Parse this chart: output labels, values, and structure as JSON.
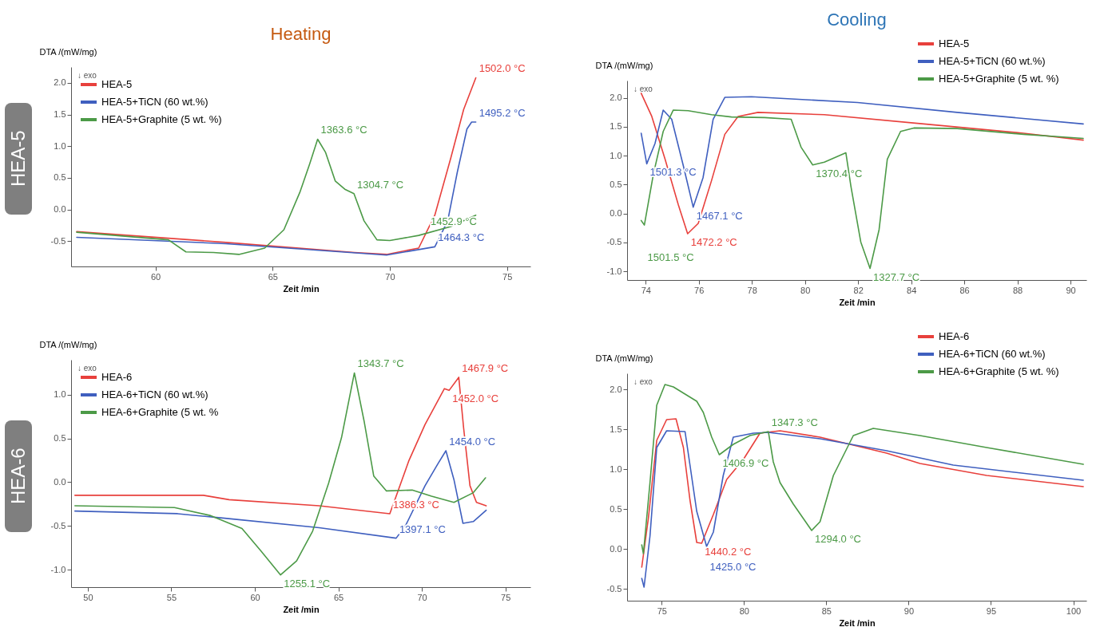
{
  "chart_data": [
    {
      "type": "line",
      "title": "Heating",
      "subtitle": "HEA-5",
      "xlabel": "Zeit /min",
      "ylabel": "DTA /(mW/mg)",
      "legend": "top left",
      "marker": "none",
      "line_style": "solid",
      "xlim": [
        56.4,
        76
      ],
      "xticks": [
        60,
        65,
        70,
        75
      ],
      "ylim": [
        -0.9,
        2.25
      ],
      "yticks": [
        {
          "value": -0.5,
          "label": "-0.5"
        },
        {
          "value": 0,
          "label": "0.0"
        },
        {
          "value": 0.5,
          "label": "0.5"
        },
        {
          "value": 1,
          "label": "1.0"
        },
        {
          "value": 1.5,
          "label": "1.5"
        },
        {
          "value": 2,
          "label": "2.0"
        }
      ],
      "series": [
        {
          "name": "HEA-5",
          "color": "#e8403c",
          "x": [
            56.64,
            63.01,
            68.49,
            69.86,
            71.23,
            71.92,
            72.6,
            73.15,
            73.67
          ],
          "values": [
            -0.35,
            -0.52,
            -0.68,
            -0.71,
            -0.61,
            -0.09,
            0.81,
            1.58,
            2.08
          ]
        },
        {
          "name": "HEA-5+TiCN (60 wt.%)",
          "color": "#3f5fbf",
          "x": [
            56.64,
            63.0,
            69.86,
            71.92,
            72.47,
            72.88,
            73.29,
            73.49,
            73.67
          ],
          "values": [
            -0.44,
            -0.54,
            -0.72,
            -0.59,
            -0.18,
            0.59,
            1.27,
            1.38,
            1.38
          ]
        },
        {
          "name": "HEA-5+Graphite (5 wt. %)",
          "color": "#4c9a47",
          "x": [
            56.64,
            60.55,
            61.3,
            62.47,
            63.56,
            64.66,
            65.48,
            66.16,
            66.58,
            66.92,
            67.26,
            67.67,
            68.08,
            68.47,
            68.9,
            69.45,
            70.0,
            71.23,
            72.6,
            73.67
          ],
          "values": [
            -0.36,
            -0.48,
            -0.67,
            -0.68,
            -0.71,
            -0.61,
            -0.32,
            0.27,
            0.72,
            1.11,
            0.9,
            0.45,
            0.32,
            0.25,
            -0.18,
            -0.48,
            -0.49,
            -0.41,
            -0.27,
            -0.09
          ]
        }
      ],
      "annotations": [
        "↓ exo",
        {
          "text": "1363.6 °C",
          "x": 66.92,
          "y": 1.11
        },
        {
          "text": "1304.7 °C",
          "x": 68.47,
          "y": 0.25
        },
        {
          "text": "1502.0 °C",
          "x": 73.67,
          "y": 2.08
        },
        {
          "text": "1495.2 °C",
          "x": 73.67,
          "y": 1.38
        },
        {
          "text": "1452.9 °C",
          "x": 71.6,
          "y": -0.33
        },
        {
          "text": "1464.3 °C",
          "x": 71.92,
          "y": -0.59
        }
      ]
    },
    {
      "type": "line",
      "title": "Cooling",
      "xlabel": "Zeit /min",
      "ylabel": "DTA /(mW/mg)",
      "legend": "top right",
      "marker": "none",
      "line_style": "solid",
      "xlim": [
        73.3,
        90.6
      ],
      "xticks": [
        74,
        76,
        78,
        80,
        82,
        84,
        86,
        88,
        90
      ],
      "ylim": [
        -1.15,
        2.3
      ],
      "yticks": [
        {
          "value": -1,
          "label": "-1.0"
        },
        {
          "value": -0.5,
          "label": "-0.5"
        },
        {
          "value": 0,
          "label": "0.0"
        },
        {
          "value": 0.5,
          "label": "0.5"
        },
        {
          "value": 1,
          "label": "1.0"
        },
        {
          "value": 1.5,
          "label": "1.5"
        },
        {
          "value": 2,
          "label": "2.0"
        }
      ],
      "series": [
        {
          "name": "HEA-5",
          "color": "#e8403c",
          "x": [
            73.83,
            74.23,
            74.73,
            75.23,
            75.58,
            75.98,
            76.48,
            76.98,
            77.48,
            78.23,
            80.73,
            84.48,
            88.23,
            90.48
          ],
          "values": [
            2.08,
            1.68,
            0.94,
            0.15,
            -0.35,
            -0.17,
            0.57,
            1.37,
            1.68,
            1.75,
            1.71,
            1.55,
            1.39,
            1.27
          ]
        },
        {
          "name": "HEA-5+TiCN (60 wt.%)",
          "color": "#3f5fbf",
          "x": [
            73.83,
            74.04,
            74.35,
            74.66,
            74.98,
            75.41,
            75.79,
            76.16,
            76.54,
            76.98,
            77.98,
            81.98,
            85.73,
            90.48
          ],
          "values": [
            1.39,
            0.86,
            1.21,
            1.79,
            1.63,
            0.84,
            0.11,
            0.62,
            1.63,
            2.01,
            2.02,
            1.92,
            1.75,
            1.55
          ]
        },
        {
          "name": "HEA-5+Graphite (5 wt. %)",
          "color": "#4c9a47",
          "x": [
            73.83,
            73.95,
            74.29,
            74.66,
            75.04,
            75.6,
            76.48,
            77.23,
            78.48,
            79.48,
            79.85,
            80.29,
            80.73,
            81.54,
            81.73,
            82.1,
            82.45,
            82.79,
            83.1,
            83.6,
            84.1,
            85.73,
            88.23,
            90.48
          ],
          "values": [
            -0.12,
            -0.2,
            0.68,
            1.42,
            1.79,
            1.78,
            1.71,
            1.67,
            1.66,
            1.63,
            1.15,
            0.84,
            0.89,
            1.05,
            0.47,
            -0.49,
            -0.95,
            -0.28,
            0.94,
            1.42,
            1.48,
            1.47,
            1.37,
            1.3
          ]
        }
      ],
      "annotations": [
        "↓ exo",
        {
          "text": "1501.3 °C",
          "x": 74.04,
          "y": 0.86
        },
        {
          "text": "1467.1 °C",
          "x": 75.79,
          "y": 0.11
        },
        {
          "text": "1472.2 °C",
          "x": 75.58,
          "y": -0.35
        },
        {
          "text": "1501.5 °C",
          "x": 73.95,
          "y": -0.2
        },
        {
          "text": "1370.4 °C",
          "x": 80.29,
          "y": 0.84
        },
        {
          "text": "1327.7 °C",
          "x": 82.45,
          "y": -0.95
        }
      ]
    },
    {
      "type": "line",
      "subtitle": "HEA-6",
      "xlabel": "Zeit /min",
      "ylabel": "DTA /(mW/mg)",
      "legend": "top left",
      "marker": "none",
      "line_style": "solid",
      "xlim": [
        49,
        76.5
      ],
      "xticks": [
        50,
        55,
        60,
        65,
        70,
        75
      ],
      "ylim": [
        -1.2,
        1.4
      ],
      "yticks": [
        {
          "value": -1,
          "label": "-1.0"
        },
        {
          "value": -0.5,
          "label": "-0.5"
        },
        {
          "value": 0,
          "label": "0.0"
        },
        {
          "value": 0.5,
          "label": "0.5"
        },
        {
          "value": 1,
          "label": "1.0"
        }
      ],
      "series": [
        {
          "name": "HEA-6",
          "color": "#e8403c",
          "x": [
            49.23,
            56.92,
            58.46,
            63.85,
            68.08,
            68.46,
            69.23,
            70.19,
            71.35,
            71.63,
            72.21,
            72.5,
            72.88,
            73.27,
            73.85
          ],
          "values": [
            -0.15,
            -0.15,
            -0.2,
            -0.27,
            -0.36,
            -0.16,
            0.25,
            0.66,
            1.07,
            1.05,
            1.2,
            0.62,
            -0.04,
            -0.23,
            -0.27
          ]
        },
        {
          "name": "HEA-6+TiCN (60 wt.%)",
          "color": "#3f5fbf",
          "x": [
            49.23,
            55.38,
            58.08,
            63.85,
            68.46,
            69.04,
            70.19,
            70.96,
            71.44,
            71.92,
            72.46,
            73.08,
            73.85
          ],
          "values": [
            -0.33,
            -0.36,
            -0.41,
            -0.52,
            -0.64,
            -0.49,
            -0.04,
            0.21,
            0.36,
            0.03,
            -0.47,
            -0.45,
            -0.32
          ]
        },
        {
          "name": "HEA-6+Graphite (5 wt. %",
          "color": "#4c9a47",
          "x": [
            49.23,
            55.19,
            57.31,
            59.23,
            60.38,
            61.54,
            62.5,
            63.46,
            64.42,
            65.19,
            65.96,
            66.54,
            67.12,
            67.88,
            69.42,
            70.58,
            71.92,
            73.08,
            73.81
          ],
          "values": [
            -0.27,
            -0.29,
            -0.38,
            -0.53,
            -0.79,
            -1.06,
            -0.9,
            -0.56,
            -0.01,
            0.51,
            1.25,
            0.7,
            0.07,
            -0.1,
            -0.09,
            -0.16,
            -0.23,
            -0.12,
            0.05
          ]
        }
      ],
      "annotations": [
        "↓ exo",
        {
          "text": "1343.7 °C",
          "x": 65.96,
          "y": 1.25
        },
        {
          "text": "1467.9 °C",
          "x": 72.21,
          "y": 1.2
        },
        {
          "text": "1452.0 °C",
          "x": 71.63,
          "y": 1.05
        },
        {
          "text": "1454.0 °C",
          "x": 71.44,
          "y": 0.36
        },
        {
          "text": "1386.3 °C",
          "x": 68.08,
          "y": -0.36
        },
        {
          "text": "1255.1 °C",
          "x": 61.54,
          "y": -1.06
        },
        {
          "text": "1397.1 °C",
          "x": 68.46,
          "y": -0.64
        }
      ]
    },
    {
      "type": "line",
      "xlabel": "Zeit /min",
      "ylabel": "DTA /(mW/mg)",
      "legend": "top right",
      "marker": "none",
      "line_style": "solid",
      "xlim": [
        72.9,
        100.8
      ],
      "xticks": [
        75,
        80,
        85,
        90,
        95,
        100
      ],
      "ylim": [
        -0.65,
        2.2
      ],
      "yticks": [
        {
          "value": -0.5,
          "label": "-0.5"
        },
        {
          "value": 0,
          "label": "0.0"
        },
        {
          "value": 0.5,
          "label": "0.5"
        },
        {
          "value": 1,
          "label": "1.0"
        },
        {
          "value": 1.5,
          "label": "1.5"
        },
        {
          "value": 2,
          "label": "2.0"
        }
      ],
      "series": [
        {
          "name": "HEA-6",
          "color": "#e8403c",
          "x": [
            73.79,
            74.19,
            74.7,
            75.3,
            75.87,
            76.32,
            76.72,
            77.13,
            77.43,
            78.14,
            78.95,
            79.96,
            80.97,
            82.19,
            84.62,
            88.66,
            90.69,
            94.74,
            100.61
          ],
          "values": [
            -0.23,
            0.38,
            1.36,
            1.62,
            1.63,
            1.27,
            0.61,
            0.08,
            0.07,
            0.43,
            0.87,
            1.12,
            1.45,
            1.48,
            1.4,
            1.2,
            1.07,
            0.92,
            0.78
          ]
        },
        {
          "name": "HEA-6+TiCN (60 wt.%)",
          "color": "#3f5fbf",
          "x": [
            73.79,
            73.93,
            74.29,
            74.7,
            75.3,
            76.42,
            76.72,
            77.13,
            77.73,
            78.14,
            78.74,
            79.35,
            80.57,
            81.48,
            84.62,
            88.66,
            92.71,
            100.61
          ],
          "values": [
            -0.37,
            -0.48,
            0.16,
            1.27,
            1.48,
            1.47,
            1.05,
            0.47,
            0.03,
            0.21,
            0.92,
            1.4,
            1.45,
            1.46,
            1.38,
            1.23,
            1.05,
            0.86
          ]
        },
        {
          "name": "HEA-6+Graphite (5 wt. %)",
          "color": "#4c9a47",
          "x": [
            73.79,
            73.89,
            74.29,
            74.7,
            75.2,
            75.71,
            77.13,
            77.53,
            78.04,
            78.5,
            79.35,
            80.36,
            81.48,
            81.78,
            82.19,
            83.0,
            84.11,
            84.62,
            85.43,
            86.64,
            87.85,
            90.69,
            94.74,
            100.61
          ],
          "values": [
            0.05,
            -0.06,
            0.83,
            1.8,
            2.06,
            2.03,
            1.85,
            1.71,
            1.4,
            1.18,
            1.31,
            1.42,
            1.47,
            1.09,
            0.83,
            0.56,
            0.23,
            0.34,
            0.92,
            1.42,
            1.51,
            1.42,
            1.27,
            1.06
          ]
        }
      ],
      "annotations": [
        "↓ exo",
        {
          "text": "1440.2 °C",
          "x": 77.43,
          "y": 0.07
        },
        {
          "text": "1425.0 °C",
          "x": 77.73,
          "y": 0.03
        },
        {
          "text": "1406.9 °C",
          "x": 78.5,
          "y": 1.18
        },
        {
          "text": "1347.3 °C",
          "x": 81.48,
          "y": 1.47
        },
        {
          "text": "1294.0 °C",
          "x": 84.11,
          "y": 0.23
        }
      ]
    }
  ]
}
